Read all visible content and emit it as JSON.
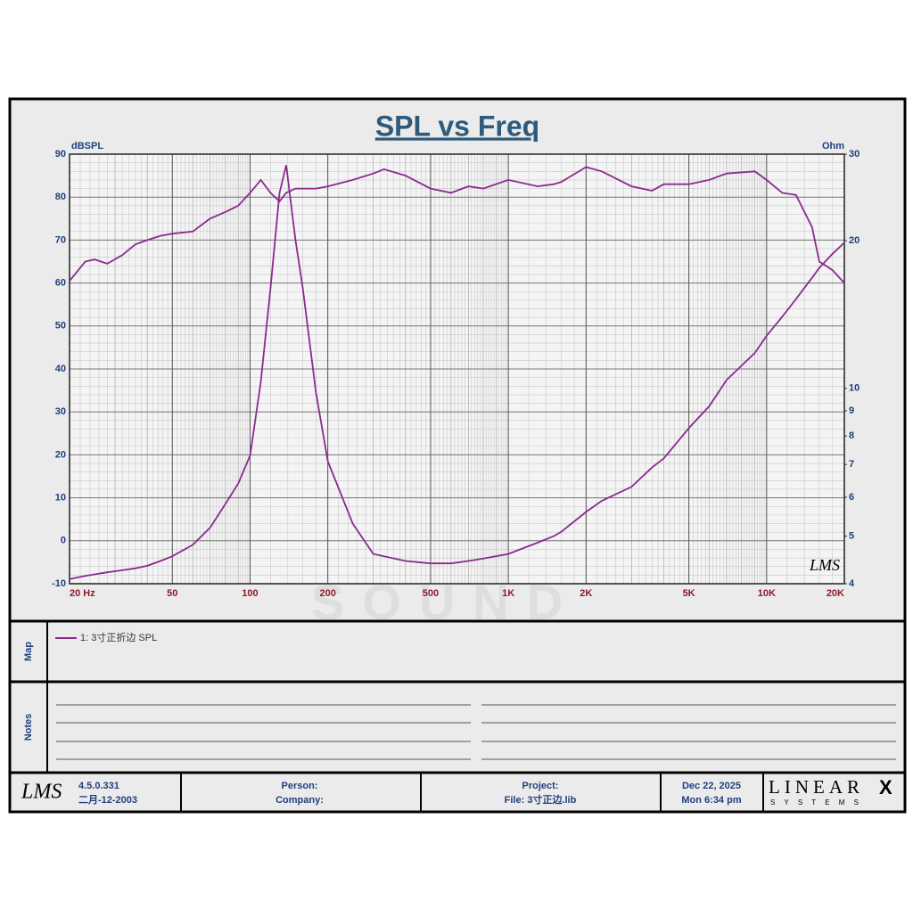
{
  "chart_data": {
    "type": "line",
    "title": "SPL vs Freq",
    "y_label": "dBSPL",
    "y2_label": "Ohm",
    "x": [
      20,
      23,
      25,
      28,
      32,
      36,
      40,
      45,
      50,
      60,
      70,
      80,
      90,
      100,
      110,
      120,
      130,
      138,
      150,
      160,
      180,
      200,
      250,
      300,
      330,
      400,
      500,
      600,
      700,
      800,
      1000,
      1300,
      1500,
      1600,
      2000,
      2300,
      3000,
      3600,
      4000,
      5000,
      6000,
      7000,
      9000,
      10000,
      11500,
      13000,
      15000,
      16000,
      18000,
      20000
    ],
    "series": [
      {
        "name": "1: 3寸正折边 SPL",
        "color": "#8a2a8e",
        "values": [
          60.5,
          65,
          65.5,
          64.5,
          66.5,
          69,
          70,
          71,
          71.5,
          72,
          75,
          76.5,
          78,
          81,
          84,
          81,
          79,
          81,
          82,
          82,
          82,
          82.5,
          84,
          85.5,
          86.5,
          85,
          82,
          81,
          82.5,
          82,
          84,
          82.5,
          83,
          83.5,
          87,
          86,
          82.5,
          81.5,
          83,
          83,
          84,
          85.5,
          86,
          84,
          81,
          80.5,
          73,
          65,
          63,
          60
        ]
      },
      {
        "color": "#8a2a8e",
        "axis": "y2",
        "values": [
          4.09,
          4.15,
          4.18,
          4.22,
          4.26,
          4.3,
          4.35,
          4.45,
          4.55,
          4.8,
          5.2,
          5.8,
          6.4,
          7.3,
          10.3,
          16,
          25,
          28.5,
          20,
          16,
          9.8,
          7.1,
          5.3,
          4.6,
          4.55,
          4.45,
          4.4,
          4.4,
          4.45,
          4.5,
          4.6,
          4.85,
          5,
          5.1,
          5.6,
          5.9,
          6.3,
          6.9,
          7.2,
          8.3,
          9.2,
          10.4,
          11.8,
          12.8,
          14,
          15.2,
          16.8,
          17.6,
          18.8,
          19.8
        ]
      }
    ],
    "x_log": true,
    "xlim": [
      20,
      20000
    ],
    "xticks": [
      {
        "value": 20,
        "label": "20  Hz"
      },
      50,
      100,
      200,
      500,
      {
        "value": 1000,
        "label": "1K"
      },
      {
        "value": 2000,
        "label": "2K"
      },
      {
        "value": 5000,
        "label": "5K"
      },
      {
        "value": 10000,
        "label": "10K"
      },
      {
        "value": 20000,
        "label": "20K"
      }
    ],
    "ylim": [
      -10,
      90
    ],
    "yticks": [
      -10,
      0,
      10,
      20,
      30,
      40,
      50,
      60,
      70,
      80,
      90
    ],
    "y2_log": true,
    "y2lim": [
      4,
      30
    ],
    "y2ticks": [
      4,
      5,
      6,
      7,
      8,
      9,
      10,
      20,
      30
    ],
    "grid": true
  },
  "panel": {
    "map_label": "Map",
    "notes_label": "Notes",
    "logo": "LMS",
    "watermark": "SOUND",
    "footer": {
      "version": "4.5.0.331",
      "build_date": "二月-12-2003",
      "person": "Person:",
      "company": "Company:",
      "project": "Project:",
      "file": "File: 3寸正边.lib",
      "date": "Dec 22, 2025",
      "time": "Mon  6:34 pm",
      "brand": "LINEAR",
      "brand_mark": "X",
      "brand_sub": "S Y S T E M S"
    }
  }
}
